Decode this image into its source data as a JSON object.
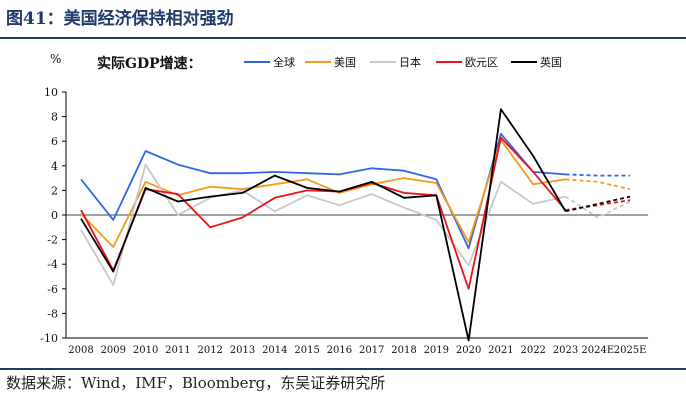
{
  "page_title": "图41：美国经济保持相对强劲",
  "source_note": "数据来源：Wind，IMF，Bloomberg，东吴证券研究所",
  "chart_data": {
    "type": "line",
    "title": "实际GDP增速：",
    "ylabel": "%",
    "xlabel": "",
    "ylim": [
      -10,
      10
    ],
    "ytick_step": 2,
    "grid": false,
    "legend_placement": "top",
    "categories": [
      "2008",
      "2009",
      "2010",
      "2011",
      "2012",
      "2013",
      "2014",
      "2015",
      "2016",
      "2017",
      "2018",
      "2019",
      "2020",
      "2021",
      "2022",
      "2023",
      "2024E",
      "2025E"
    ],
    "forecast_start_index": 15,
    "series": [
      {
        "name": "全球",
        "color": "#3366e6",
        "values": [
          2.9,
          -0.4,
          5.2,
          4.1,
          3.4,
          3.4,
          3.5,
          3.4,
          3.3,
          3.8,
          3.6,
          2.9,
          -2.7,
          6.6,
          3.5,
          3.3,
          3.2,
          3.2
        ]
      },
      {
        "name": "美国",
        "color": "#f59a1b",
        "values": [
          0.1,
          -2.6,
          2.7,
          1.6,
          2.3,
          2.1,
          2.5,
          2.9,
          1.8,
          2.5,
          3.0,
          2.6,
          -2.2,
          6.1,
          2.5,
          2.9,
          2.7,
          2.1
        ]
      },
      {
        "name": "日本",
        "color": "#c8c8c8",
        "values": [
          -1.2,
          -5.7,
          4.1,
          0.0,
          1.4,
          2.0,
          0.3,
          1.6,
          0.8,
          1.7,
          0.6,
          -0.4,
          -4.1,
          2.7,
          0.9,
          1.5,
          -0.2,
          1.1
        ]
      },
      {
        "name": "欧元区",
        "color": "#e8141c",
        "values": [
          0.4,
          -4.5,
          2.1,
          1.7,
          -1.0,
          -0.2,
          1.4,
          2.0,
          1.9,
          2.6,
          1.8,
          1.6,
          -6.0,
          6.3,
          3.5,
          0.4,
          0.8,
          1.2
        ]
      },
      {
        "name": "英国",
        "color": "#000000",
        "values": [
          -0.3,
          -4.6,
          2.2,
          1.1,
          1.5,
          1.8,
          3.2,
          2.2,
          1.9,
          2.7,
          1.4,
          1.6,
          -10.2,
          8.6,
          4.8,
          0.3,
          0.9,
          1.5
        ]
      }
    ]
  }
}
